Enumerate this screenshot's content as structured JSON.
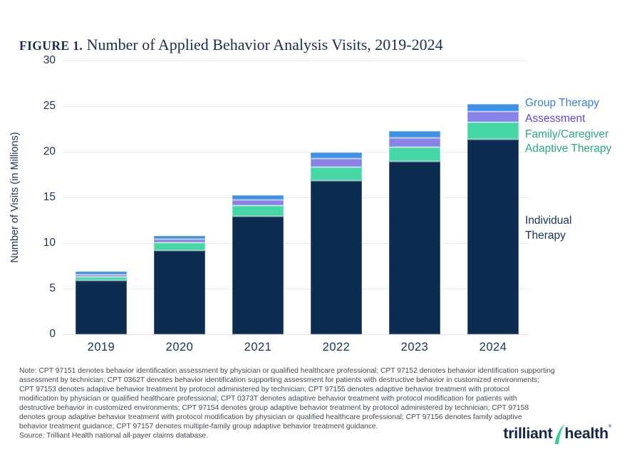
{
  "figure": {
    "label": "FIGURE 1.",
    "title": " Number of Applied Behavior Analysis Visits, 2019-2024"
  },
  "chart_data": {
    "type": "bar",
    "stacked": true,
    "title": "Number of Applied Behavior Analysis Visits, 2019-2024",
    "xlabel": "",
    "ylabel": "Number of Visits (in Millions)",
    "ylim": [
      0,
      30
    ],
    "yticks": [
      0,
      5,
      10,
      15,
      20,
      25,
      30
    ],
    "grid": true,
    "legend_position": "right",
    "categories": [
      "2019",
      "2020",
      "2021",
      "2022",
      "2023",
      "2024"
    ],
    "series": [
      {
        "name": "Individual Therapy",
        "color": "#0D2C52",
        "values": [
          5.9,
          9.2,
          13.0,
          16.9,
          19.0,
          21.4
        ]
      },
      {
        "name": "Family/Caregiver Adaptive Therapy",
        "color": "#46D8A4",
        "values": [
          0.4,
          0.9,
          1.15,
          1.45,
          1.55,
          1.85
        ]
      },
      {
        "name": "Assessment",
        "color": "#8B82E8",
        "values": [
          0.3,
          0.4,
          0.6,
          0.95,
          1.0,
          1.2
        ]
      },
      {
        "name": "Group Therapy",
        "color": "#3D92E6",
        "values": [
          0.3,
          0.3,
          0.45,
          0.6,
          0.7,
          0.75
        ]
      }
    ],
    "totals": [
      6.9,
      10.8,
      15.2,
      19.9,
      22.25,
      25.2
    ]
  },
  "legend": {
    "items": [
      {
        "key": "group-therapy",
        "label": "Group Therapy",
        "text_color": "#3A7FDF"
      },
      {
        "key": "assessment",
        "label": "Assessment",
        "text_color": "#5849DA"
      },
      {
        "key": "family-caregiver-adaptive-therapy",
        "label": "Family/Caregiver\nAdaptive Therapy",
        "text_color": "#2CA87D"
      },
      {
        "key": "individual-therapy",
        "label": "Individual\nTherapy",
        "text_color": "#16335E"
      }
    ]
  },
  "note": {
    "text": "Note: CPT 97151 denotes behavior identification assessment by physician or qualified healthcare professional; CPT 97152 denotes behavior identification supporting\nassessment by technician; CPT 0362T denotes behavior identification supporting assessment for patients with destructive behavior in customized environments;\nCPT 97153 denotes adaptive behavior treatment by protocol administered by technician; CPT 97155 denotes adaptive behavior treatment with protocol\nmodification by physician or qualified healthcare professional; CPT 0373T denotes adaptive behavior treatment with protocol modification for patients with\ndestructive behavior in customized environments; CPT 97154 denotes group adaptive behavior treatment by protocol administered by technician; CPT 97158\ndenotes group adaptive behavior treatment with protocol modification by physician or qualified healthcare professional; CPT 97156 denotes family adaptive\nbehavior treatment guidance; CPT 97157 denotes multiple-family group adaptive behavior treatment guidance."
  },
  "source": "Source: Trilliant Health national all-payer claims database.",
  "logo": {
    "part1": "trilliant",
    "part2": "health",
    "mark": "®",
    "swoosh_color": "#38CD97",
    "text_color": "#13294B"
  },
  "colors": {
    "title": "#1C2C4F",
    "axis_text": "#16335E",
    "gridline": "#E8EAED",
    "note_text": "#3D4A54",
    "background": "#FFFFFF"
  }
}
